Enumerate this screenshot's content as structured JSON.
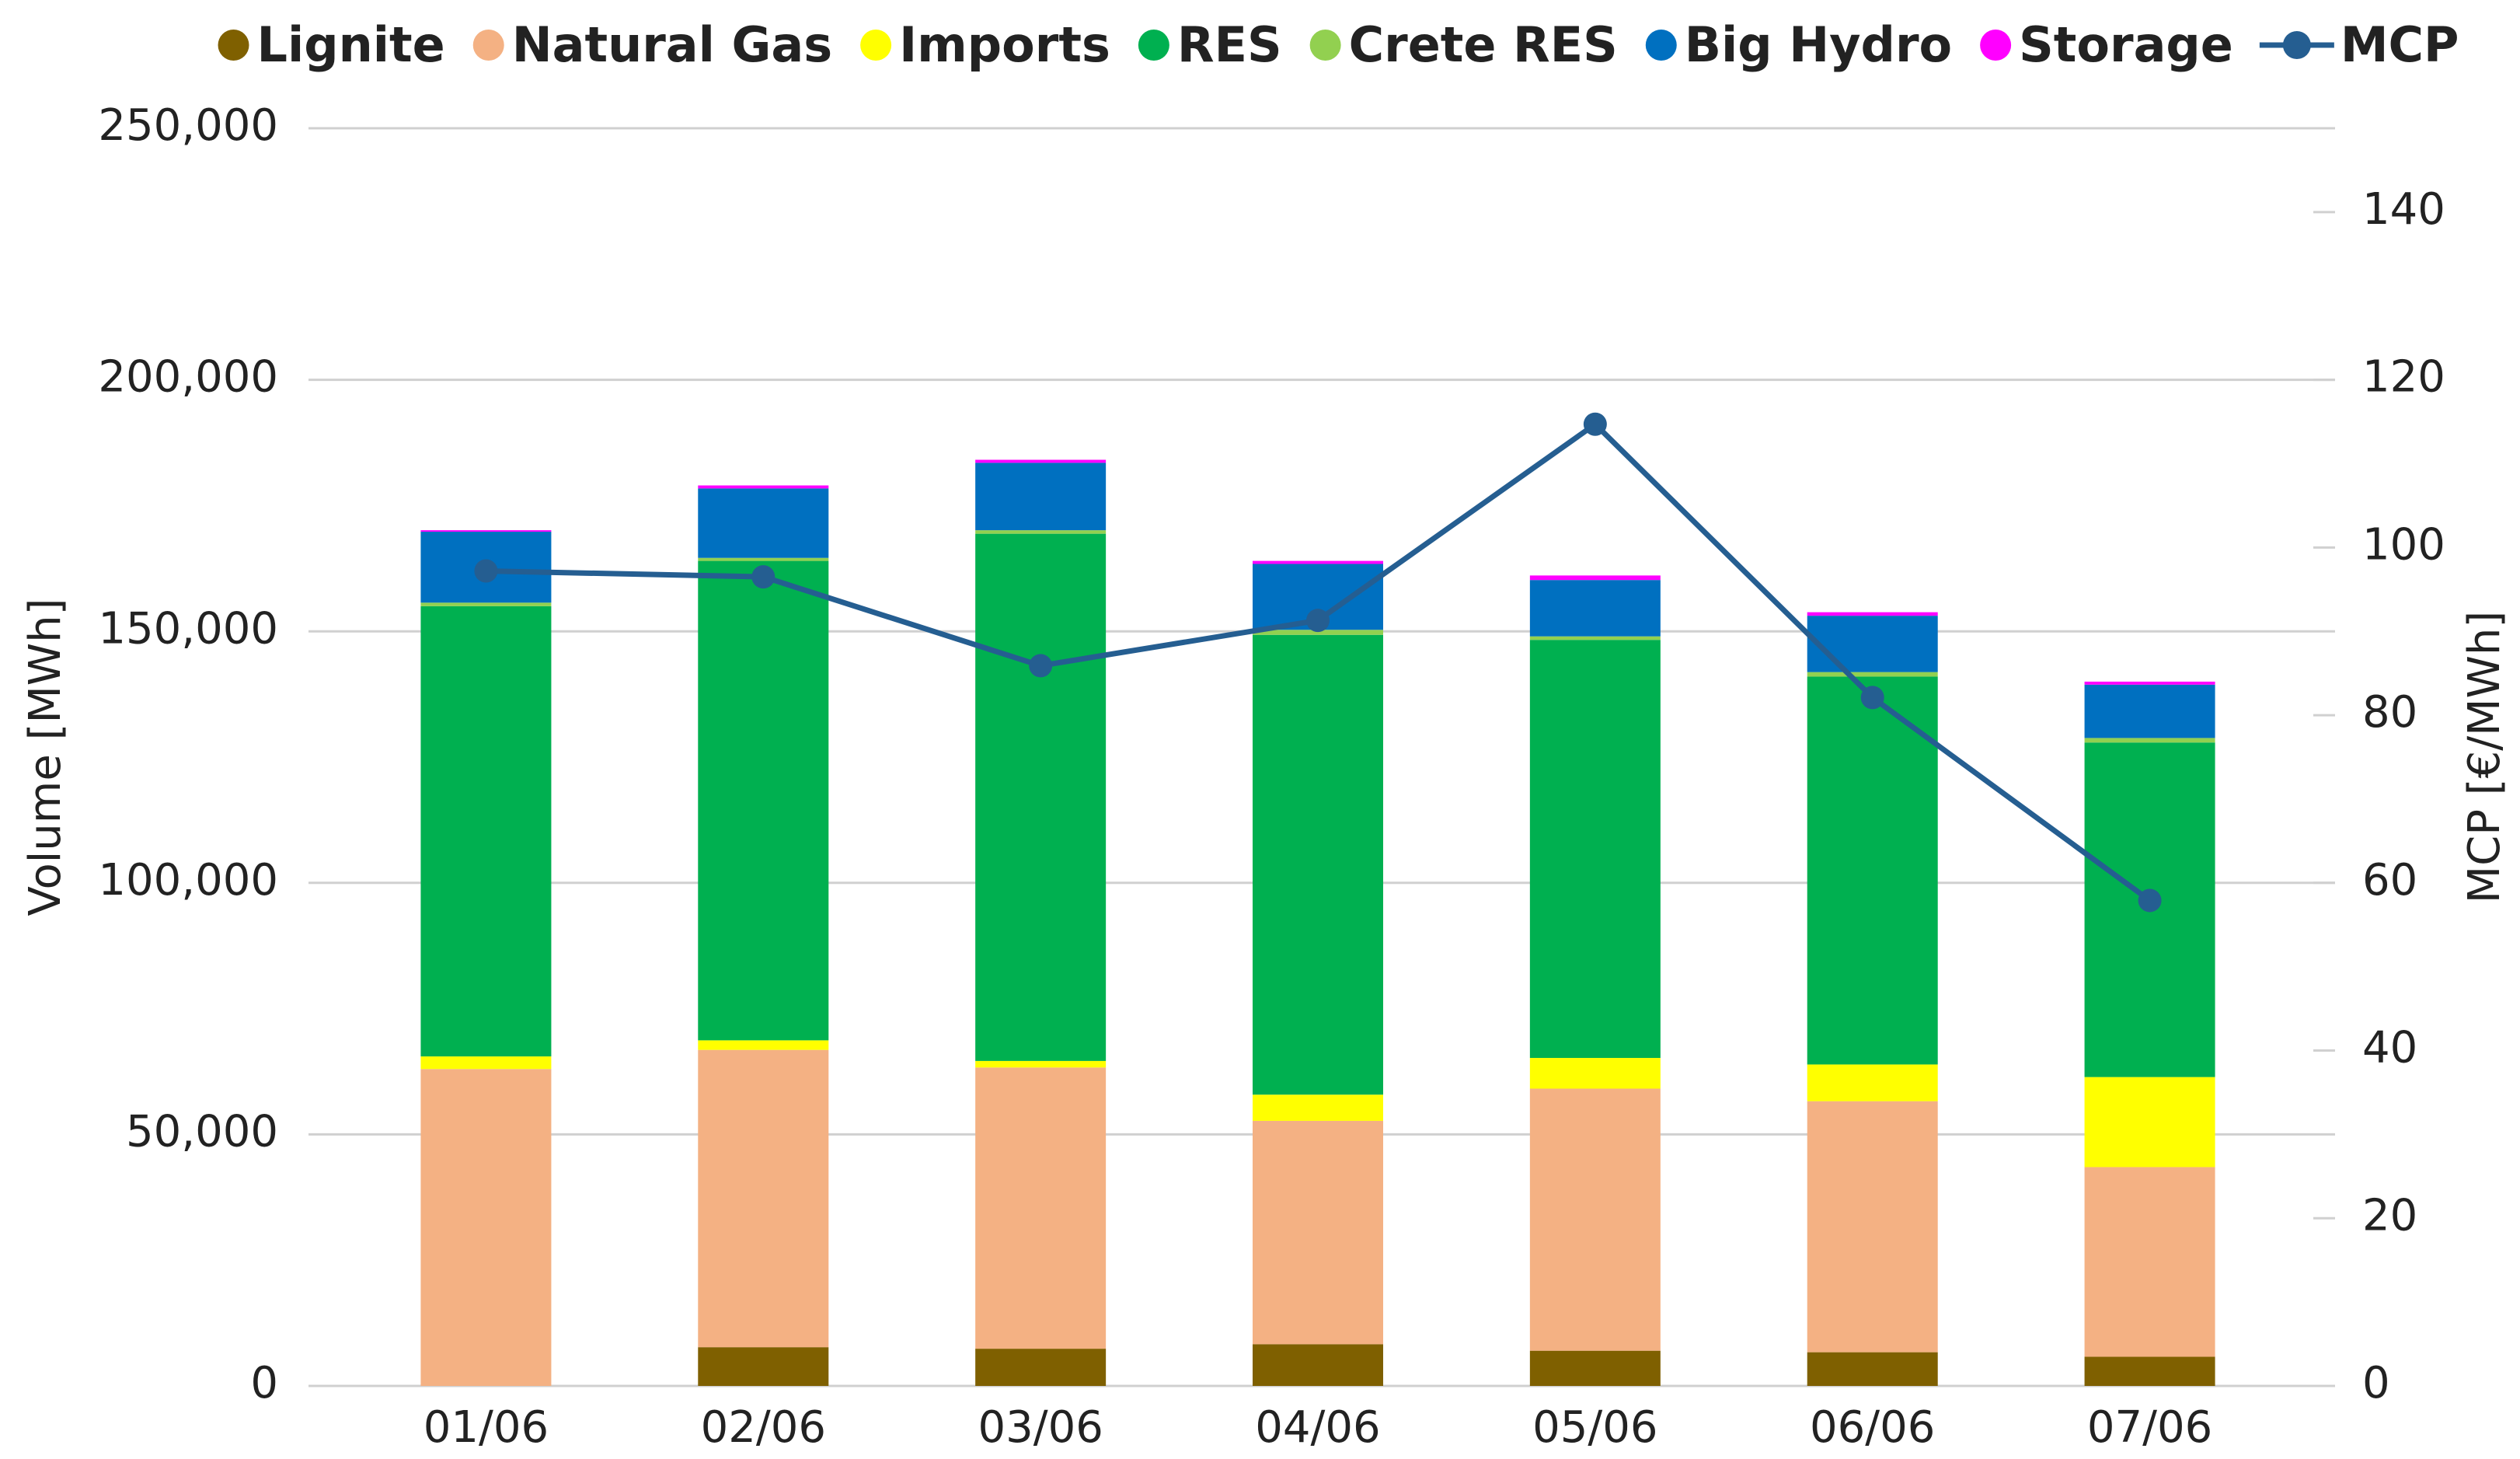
{
  "chart_data": {
    "type": "bar",
    "stacked": true,
    "categories": [
      "01/06",
      "02/06",
      "03/06",
      "04/06",
      "05/06",
      "06/06",
      "07/06"
    ],
    "series": [
      {
        "name": "Lignite",
        "color": "#7f6000",
        "values": [
          0,
          7700,
          7400,
          8300,
          7000,
          6700,
          5800
        ]
      },
      {
        "name": "Natural Gas",
        "color": "#f4b183",
        "values": [
          63000,
          59100,
          55900,
          44400,
          52100,
          49900,
          37700
        ]
      },
      {
        "name": "Imports",
        "color": "#ffff00",
        "values": [
          2500,
          1900,
          1300,
          5200,
          6100,
          7300,
          17900
        ]
      },
      {
        "name": "RES",
        "color": "#00b050",
        "values": [
          89500,
          95300,
          104800,
          91400,
          83100,
          77100,
          66500
        ]
      },
      {
        "name": "Crete RES",
        "color": "#92d050",
        "values": [
          700,
          600,
          700,
          1000,
          700,
          900,
          900
        ]
      },
      {
        "name": "Big Hydro",
        "color": "#0070c0",
        "values": [
          14100,
          13800,
          13400,
          13100,
          11200,
          11200,
          10600
        ]
      },
      {
        "name": "Storage",
        "color": "#ff00ff",
        "values": [
          300,
          600,
          600,
          600,
          900,
          700,
          600
        ]
      },
      {
        "name": "MCP",
        "color": "#255e91",
        "type": "line",
        "axis": "y2",
        "values": [
          97.2,
          96.5,
          85.9,
          91.3,
          114.7,
          82.1,
          57.9
        ]
      }
    ],
    "y_label": "Volume [MWh]",
    "y2_label": "MCP [€/MWh]",
    "ylim": [
      0,
      250000
    ],
    "yticks": [
      0,
      {
        "value": 50000,
        "label": "50,000"
      },
      {
        "value": 100000,
        "label": "100,000"
      },
      {
        "value": 150000,
        "label": "150,000"
      },
      {
        "value": 200000,
        "label": "200,000"
      },
      {
        "value": 250000,
        "label": "250,000"
      }
    ],
    "y2lim": [
      0,
      150
    ],
    "y2ticks": [
      0,
      20,
      40,
      60,
      80,
      100,
      120,
      140
    ],
    "grid": true,
    "legend": "top"
  }
}
